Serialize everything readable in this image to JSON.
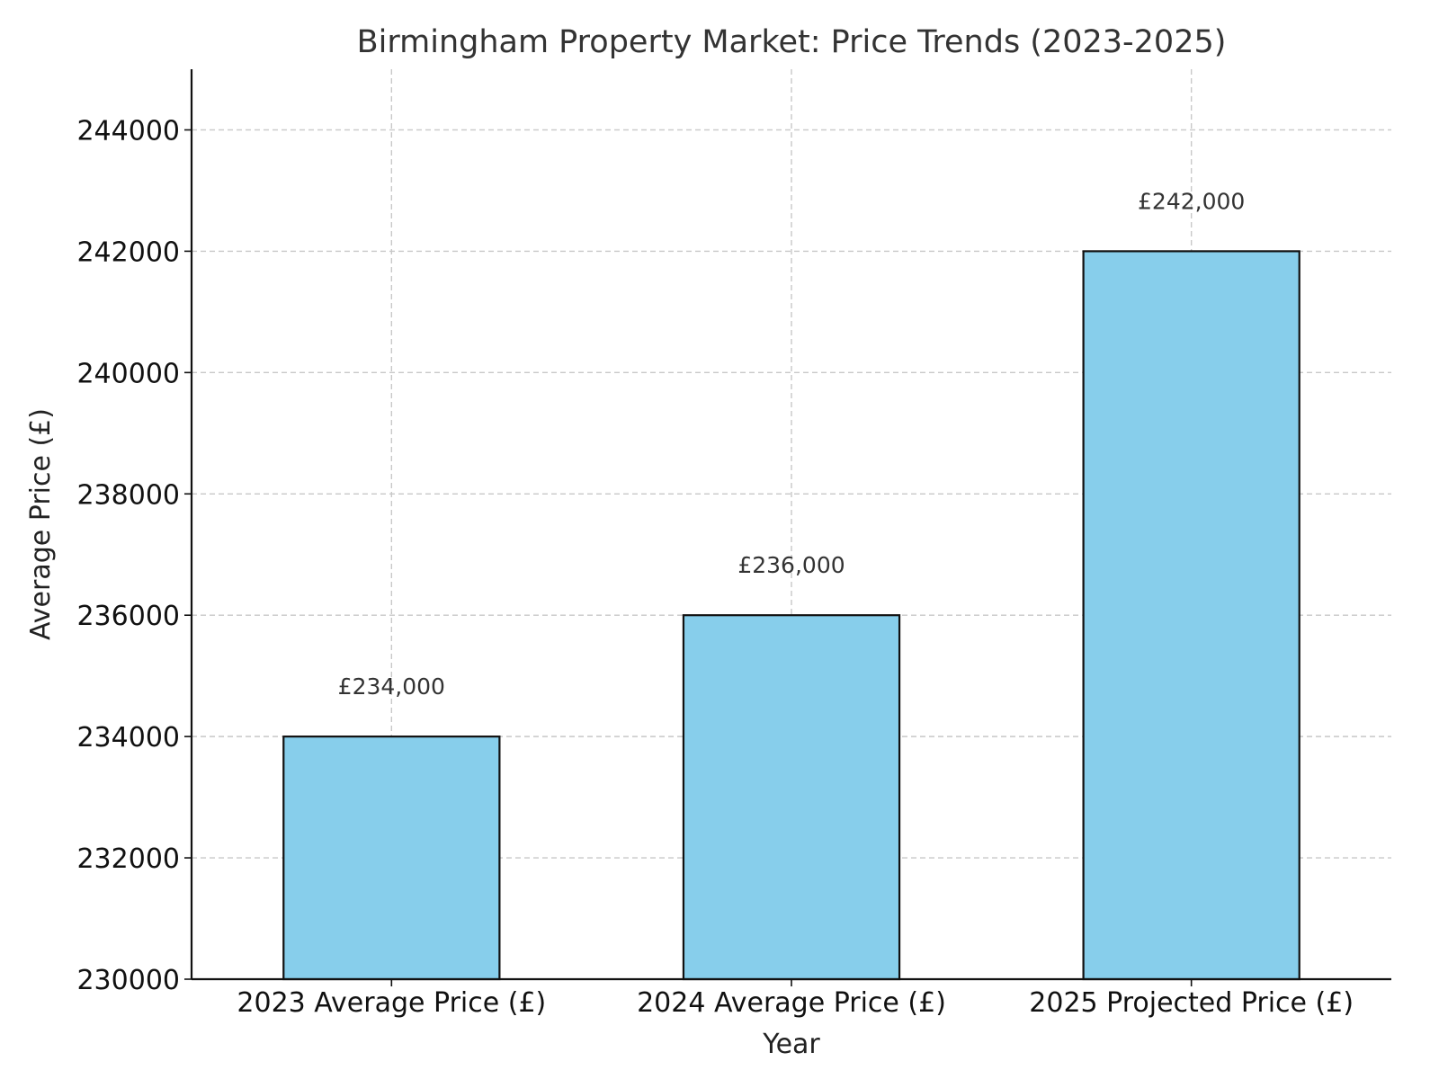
{
  "chart_data": {
    "type": "bar",
    "title": "Birmingham Property Market: Price Trends (2023-2025)",
    "xlabel": "Year",
    "ylabel": "Average Price (£)",
    "categories": [
      "2023 Average Price (£)",
      "2024 Average Price (£)",
      "2025 Projected Price (£)"
    ],
    "values": [
      234000,
      236000,
      242000
    ],
    "data_labels": [
      "£234,000",
      "£236,000",
      "£242,000"
    ],
    "ylim": [
      230000,
      245000
    ],
    "yticks": [
      "230000",
      "232000",
      "234000",
      "236000",
      "238000",
      "240000",
      "242000",
      "244000"
    ],
    "grid": true,
    "bar_color": "#87CEEB",
    "edge_color": "#111111"
  }
}
